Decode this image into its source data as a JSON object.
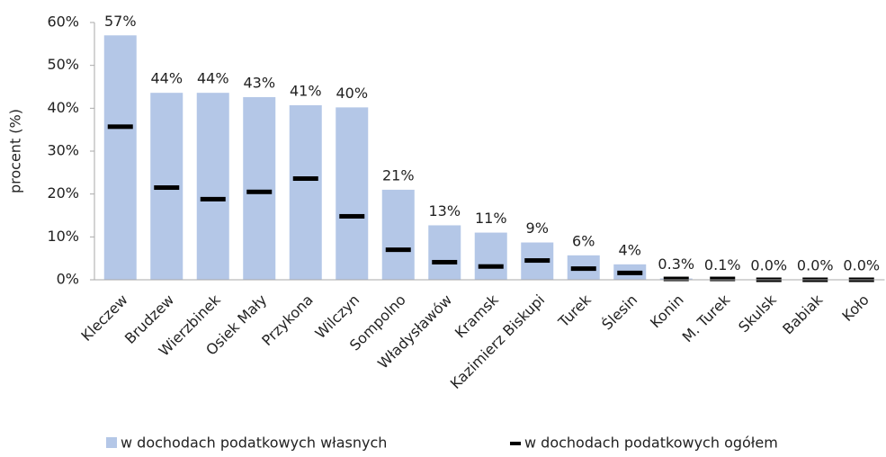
{
  "chart_data": {
    "type": "bar",
    "ylabel": "procent (%)",
    "categories": [
      "Kleczew",
      "Brudzew",
      "Wierzbinek",
      "Osiek Mały",
      "Przykona",
      "Wilczyn",
      "Sompolno",
      "Władysławów",
      "Kramsk",
      "Kazimierz Biskupi",
      "Turek",
      "Ślesin",
      "Konin",
      "M. Turek",
      "Skulsk",
      "Babiak",
      "Koło"
    ],
    "series": [
      {
        "name": "w dochodach podatkowych własnych",
        "color": "#b4c7e7",
        "values": [
          57,
          43.6,
          43.6,
          42.6,
          40.7,
          40.2,
          21,
          12.7,
          11,
          8.7,
          5.7,
          3.6,
          0.3,
          0.1,
          0,
          0,
          0
        ],
        "value_labels": [
          "57%",
          "44%",
          "44%",
          "43%",
          "41%",
          "40%",
          "21%",
          "13%",
          "11%",
          "9%",
          "6%",
          "4%",
          "0.3%",
          "0.1%",
          "0.0%",
          "0.0%",
          "0.0%"
        ]
      },
      {
        "name": "w dochodach podatkowych ogółem",
        "color": "#000000",
        "values": [
          35.7,
          21.5,
          18.8,
          20.5,
          23.6,
          14.8,
          7,
          4.1,
          3.1,
          4.5,
          2.6,
          1.6,
          0.2,
          0.2,
          0,
          0,
          0
        ]
      }
    ],
    "ylim": [
      0,
      60
    ],
    "yticks": [
      {
        "value": 0,
        "label": "0%"
      },
      {
        "value": 10,
        "label": "10%"
      },
      {
        "value": 20,
        "label": "20%"
      },
      {
        "value": 30,
        "label": "30%"
      },
      {
        "value": 40,
        "label": "40%"
      },
      {
        "value": 50,
        "label": "50%"
      },
      {
        "value": 60,
        "label": "60%"
      }
    ],
    "legend": "bottom"
  }
}
